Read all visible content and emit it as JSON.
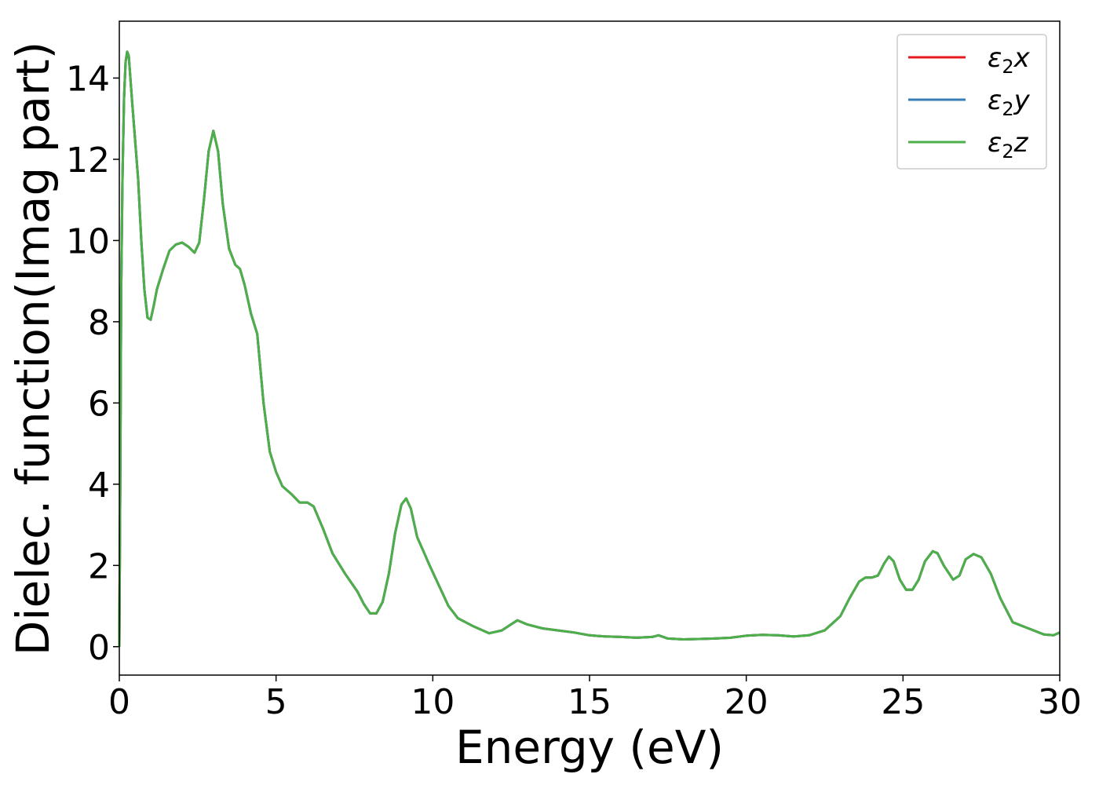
{
  "chart_data": {
    "type": "line",
    "title": "",
    "xlabel": "Energy (eV)",
    "ylabel": "Dielec. function(Imag part)",
    "xlim": [
      0,
      30
    ],
    "ylim": [
      -0.7,
      15.4
    ],
    "xticks": [
      0,
      5,
      10,
      15,
      20,
      25,
      30
    ],
    "yticks": [
      0,
      2,
      4,
      6,
      8,
      10,
      12,
      14
    ],
    "grid": false,
    "legend_position": "top-right",
    "series": [
      {
        "name_base": "ε",
        "name_sub": "2",
        "name_axis": "x",
        "color": "#e41a1c",
        "ref": "common"
      },
      {
        "name_base": "ε",
        "name_sub": "2",
        "name_axis": "y",
        "color": "#377eb8",
        "ref": "common"
      },
      {
        "name_base": "ε",
        "name_sub": "2",
        "name_axis": "z",
        "color": "#4daf4a",
        "ref": "common"
      }
    ],
    "common_points": [
      [
        0,
        0
      ],
      [
        0.03,
        4
      ],
      [
        0.06,
        8.8
      ],
      [
        0.1,
        11.5
      ],
      [
        0.15,
        13.5
      ],
      [
        0.2,
        14.4
      ],
      [
        0.25,
        14.65
      ],
      [
        0.3,
        14.55
      ],
      [
        0.4,
        13.5
      ],
      [
        0.5,
        12.5
      ],
      [
        0.6,
        11.5
      ],
      [
        0.7,
        10.0
      ],
      [
        0.8,
        8.8
      ],
      [
        0.9,
        8.1
      ],
      [
        1.0,
        8.05
      ],
      [
        1.1,
        8.4
      ],
      [
        1.2,
        8.8
      ],
      [
        1.4,
        9.3
      ],
      [
        1.6,
        9.75
      ],
      [
        1.8,
        9.9
      ],
      [
        2.0,
        9.95
      ],
      [
        2.2,
        9.85
      ],
      [
        2.4,
        9.7
      ],
      [
        2.55,
        9.95
      ],
      [
        2.7,
        11.0
      ],
      [
        2.85,
        12.2
      ],
      [
        3.0,
        12.7
      ],
      [
        3.15,
        12.2
      ],
      [
        3.3,
        10.9
      ],
      [
        3.5,
        9.8
      ],
      [
        3.7,
        9.4
      ],
      [
        3.85,
        9.3
      ],
      [
        4.0,
        8.9
      ],
      [
        4.2,
        8.2
      ],
      [
        4.4,
        7.7
      ],
      [
        4.6,
        6.0
      ],
      [
        4.8,
        4.8
      ],
      [
        5.0,
        4.3
      ],
      [
        5.2,
        3.95
      ],
      [
        5.5,
        3.75
      ],
      [
        5.75,
        3.55
      ],
      [
        6.0,
        3.55
      ],
      [
        6.2,
        3.45
      ],
      [
        6.5,
        2.9
      ],
      [
        6.8,
        2.3
      ],
      [
        7.2,
        1.8
      ],
      [
        7.6,
        1.35
      ],
      [
        7.8,
        1.05
      ],
      [
        8.0,
        0.82
      ],
      [
        8.2,
        0.82
      ],
      [
        8.4,
        1.1
      ],
      [
        8.6,
        1.8
      ],
      [
        8.8,
        2.8
      ],
      [
        9.0,
        3.5
      ],
      [
        9.15,
        3.65
      ],
      [
        9.3,
        3.4
      ],
      [
        9.5,
        2.7
      ],
      [
        9.7,
        2.35
      ],
      [
        9.9,
        2.0
      ],
      [
        10.2,
        1.5
      ],
      [
        10.5,
        1.0
      ],
      [
        10.8,
        0.7
      ],
      [
        11.3,
        0.5
      ],
      [
        11.8,
        0.33
      ],
      [
        12.2,
        0.4
      ],
      [
        12.5,
        0.55
      ],
      [
        12.7,
        0.65
      ],
      [
        13.0,
        0.55
      ],
      [
        13.5,
        0.45
      ],
      [
        14.0,
        0.4
      ],
      [
        14.5,
        0.35
      ],
      [
        15.0,
        0.28
      ],
      [
        15.5,
        0.25
      ],
      [
        16.0,
        0.24
      ],
      [
        16.5,
        0.22
      ],
      [
        17.0,
        0.24
      ],
      [
        17.2,
        0.28
      ],
      [
        17.5,
        0.2
      ],
      [
        18.0,
        0.18
      ],
      [
        18.5,
        0.19
      ],
      [
        19.0,
        0.2
      ],
      [
        19.5,
        0.22
      ],
      [
        20.0,
        0.27
      ],
      [
        20.5,
        0.29
      ],
      [
        21.0,
        0.28
      ],
      [
        21.5,
        0.25
      ],
      [
        22.0,
        0.28
      ],
      [
        22.5,
        0.4
      ],
      [
        23.0,
        0.75
      ],
      [
        23.3,
        1.2
      ],
      [
        23.6,
        1.6
      ],
      [
        23.8,
        1.7
      ],
      [
        24.0,
        1.7
      ],
      [
        24.2,
        1.75
      ],
      [
        24.4,
        2.05
      ],
      [
        24.55,
        2.22
      ],
      [
        24.7,
        2.1
      ],
      [
        24.9,
        1.65
      ],
      [
        25.1,
        1.4
      ],
      [
        25.3,
        1.4
      ],
      [
        25.5,
        1.65
      ],
      [
        25.7,
        2.1
      ],
      [
        25.95,
        2.35
      ],
      [
        26.1,
        2.3
      ],
      [
        26.3,
        2.0
      ],
      [
        26.6,
        1.65
      ],
      [
        26.8,
        1.75
      ],
      [
        27.0,
        2.15
      ],
      [
        27.25,
        2.28
      ],
      [
        27.5,
        2.2
      ],
      [
        27.8,
        1.8
      ],
      [
        28.1,
        1.2
      ],
      [
        28.5,
        0.6
      ],
      [
        29.0,
        0.45
      ],
      [
        29.5,
        0.3
      ],
      [
        29.8,
        0.28
      ],
      [
        30,
        0.35
      ]
    ]
  }
}
